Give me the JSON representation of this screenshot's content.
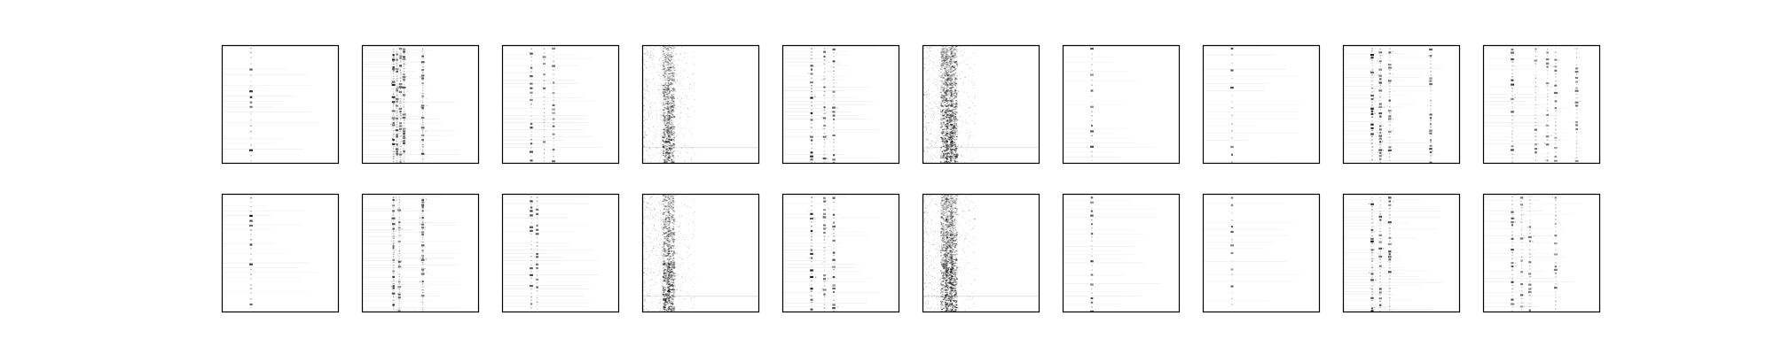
{
  "figure": {
    "background": "#ffffff",
    "frame_color": "#000000",
    "ink_color": "#000000"
  },
  "chart_data": {
    "type": "heatmap",
    "layout": "grid",
    "rows": 2,
    "cols": 10,
    "axes_visible": false,
    "ticks_visible": false,
    "colormap": "Greys",
    "description_note": "",
    "panels": [
      {
        "row": 0,
        "col": 0,
        "pattern": "comb",
        "columns": [
          0.25
        ],
        "intensity": 0.85,
        "spacing": 0.045
      },
      {
        "row": 0,
        "col": 1,
        "pattern": "multi",
        "columns": [
          0.27,
          0.3,
          0.33,
          0.36,
          0.52
        ],
        "intensity": 0.9,
        "spacing": 0.02
      },
      {
        "row": 0,
        "col": 2,
        "pattern": "comb",
        "columns": [
          0.25,
          0.36,
          0.44
        ],
        "intensity": 0.8,
        "spacing": 0.03
      },
      {
        "row": 0,
        "col": 3,
        "pattern": "smear",
        "columns": [
          0.2,
          0.24
        ],
        "intensity": 0.7,
        "spacing": 0.008
      },
      {
        "row": 0,
        "col": 4,
        "pattern": "multi",
        "columns": [
          0.25,
          0.36,
          0.44
        ],
        "intensity": 0.9,
        "spacing": 0.03
      },
      {
        "row": 0,
        "col": 5,
        "pattern": "smear",
        "columns": [
          0.18,
          0.22,
          0.26
        ],
        "intensity": 0.8,
        "spacing": 0.008
      },
      {
        "row": 0,
        "col": 6,
        "pattern": "comb",
        "columns": [
          0.25
        ],
        "intensity": 0.75,
        "spacing": 0.04
      },
      {
        "row": 0,
        "col": 7,
        "pattern": "comb",
        "columns": [
          0.25
        ],
        "intensity": 0.7,
        "spacing": 0.06
      },
      {
        "row": 0,
        "col": 8,
        "pattern": "multi",
        "columns": [
          0.25,
          0.32,
          0.4,
          0.75
        ],
        "intensity": 0.9,
        "spacing": 0.025
      },
      {
        "row": 0,
        "col": 9,
        "pattern": "multi",
        "columns": [
          0.25,
          0.45,
          0.55,
          0.62,
          0.8
        ],
        "intensity": 0.75,
        "spacing": 0.03
      },
      {
        "row": 1,
        "col": 0,
        "pattern": "comb",
        "columns": [
          0.25
        ],
        "intensity": 0.9,
        "spacing": 0.04
      },
      {
        "row": 1,
        "col": 1,
        "pattern": "multi",
        "columns": [
          0.27,
          0.32,
          0.52
        ],
        "intensity": 0.85,
        "spacing": 0.02
      },
      {
        "row": 1,
        "col": 2,
        "pattern": "comb",
        "columns": [
          0.25,
          0.3
        ],
        "intensity": 0.85,
        "spacing": 0.03
      },
      {
        "row": 1,
        "col": 3,
        "pattern": "smear",
        "columns": [
          0.2,
          0.24
        ],
        "intensity": 0.75,
        "spacing": 0.008
      },
      {
        "row": 1,
        "col": 4,
        "pattern": "multi",
        "columns": [
          0.25,
          0.36,
          0.44
        ],
        "intensity": 0.9,
        "spacing": 0.03
      },
      {
        "row": 1,
        "col": 5,
        "pattern": "smear",
        "columns": [
          0.18,
          0.22,
          0.26
        ],
        "intensity": 0.8,
        "spacing": 0.008
      },
      {
        "row": 1,
        "col": 6,
        "pattern": "comb",
        "columns": [
          0.25
        ],
        "intensity": 0.75,
        "spacing": 0.035
      },
      {
        "row": 1,
        "col": 7,
        "pattern": "comb",
        "columns": [
          0.25
        ],
        "intensity": 0.7,
        "spacing": 0.055
      },
      {
        "row": 1,
        "col": 8,
        "pattern": "multi",
        "columns": [
          0.25,
          0.32,
          0.4
        ],
        "intensity": 0.9,
        "spacing": 0.025
      },
      {
        "row": 1,
        "col": 9,
        "pattern": "multi",
        "columns": [
          0.25,
          0.33,
          0.4,
          0.62
        ],
        "intensity": 0.75,
        "spacing": 0.03
      }
    ]
  }
}
